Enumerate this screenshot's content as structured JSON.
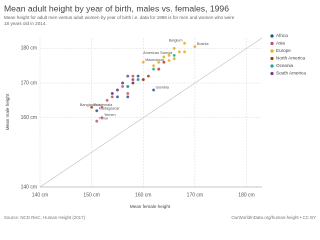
{
  "chart_data": {
    "type": "scatter",
    "title": "Mean adult height by year of birth, males vs. females, 1996",
    "subtitle": [
      "Mean height for adult men versus adult women by year of birth i.e. data for 1996 is for men and women who were",
      "18 years old in 2014."
    ],
    "x_label": "Mean female height",
    "y_label": "Mean male height",
    "source": "Source: NCD RisC, Human Height (2017)",
    "credit": "OurWorldInData.org/human-height • CC BY",
    "xlim": [
      140,
      183
    ],
    "ylim": [
      140,
      183
    ],
    "xticks": [
      {
        "value": 140,
        "label": "140 cm"
      },
      {
        "value": 150,
        "label": "150 cm"
      },
      {
        "value": 160,
        "label": "160 cm"
      },
      {
        "value": 170,
        "label": "170 cm"
      },
      {
        "value": 180,
        "label": "180 cm"
      }
    ],
    "yticks": [
      {
        "value": 140,
        "label": "140 cm"
      },
      {
        "value": 160,
        "label": "160 cm"
      },
      {
        "value": 170,
        "label": "170 cm"
      },
      {
        "value": 180,
        "label": "180 cm"
      }
    ],
    "grid": true,
    "series": [
      {
        "name": "Africa",
        "color": "#2c4a8e",
        "x": [
          158,
          159,
          157,
          162,
          155,
          151,
          160,
          157,
          154
        ],
        "y": [
          170,
          172,
          169,
          168,
          166,
          162,
          171,
          166,
          167
        ],
        "labels": [
          null,
          null,
          null,
          "Gambia",
          null,
          "Madagascar",
          null,
          null,
          null
        ]
      },
      {
        "name": "Asia",
        "color": "#c15065",
        "x": [
          158,
          155,
          156,
          157,
          152,
          151,
          153,
          159,
          154,
          152,
          156
        ],
        "y": [
          172,
          168,
          170,
          167,
          163,
          159,
          165,
          171,
          166,
          160,
          169
        ],
        "labels": [
          null,
          null,
          null,
          null,
          "Bangladesh",
          "Timor",
          null,
          null,
          null,
          "Yemen",
          null
        ]
      },
      {
        "name": "Europe",
        "color": "#e8ac10",
        "x": [
          168,
          170,
          166,
          167,
          165,
          164,
          163,
          166,
          162,
          165,
          168,
          160
        ],
        "y": [
          181.5,
          180.5,
          180,
          179,
          178,
          177.5,
          176,
          177,
          175,
          176.5,
          179,
          176
        ],
        "labels": [
          "Belgium",
          "Bosnia",
          null,
          null,
          null,
          null,
          null,
          null,
          null,
          null,
          null,
          "Macedonia"
        ]
      },
      {
        "name": "North America",
        "color": "#b13507",
        "x": [
          164,
          163,
          160,
          150,
          158,
          161
        ],
        "y": [
          176,
          174,
          171,
          163,
          170,
          172
        ],
        "labels": [
          null,
          null,
          null,
          "Guatemala",
          null,
          null
        ]
      },
      {
        "name": "Oceania",
        "color": "#18a59d",
        "x": [
          166,
          159,
          162,
          157
        ],
        "y": [
          178,
          171,
          174,
          169
        ],
        "labels": [
          "American Samoa",
          null,
          null,
          null
        ]
      },
      {
        "name": "South America",
        "color": "#6d3e91",
        "x": [
          158,
          156,
          155,
          157,
          154
        ],
        "y": [
          171,
          170,
          168,
          172,
          167
        ],
        "labels": [
          null,
          null,
          null,
          null,
          null
        ]
      }
    ]
  }
}
